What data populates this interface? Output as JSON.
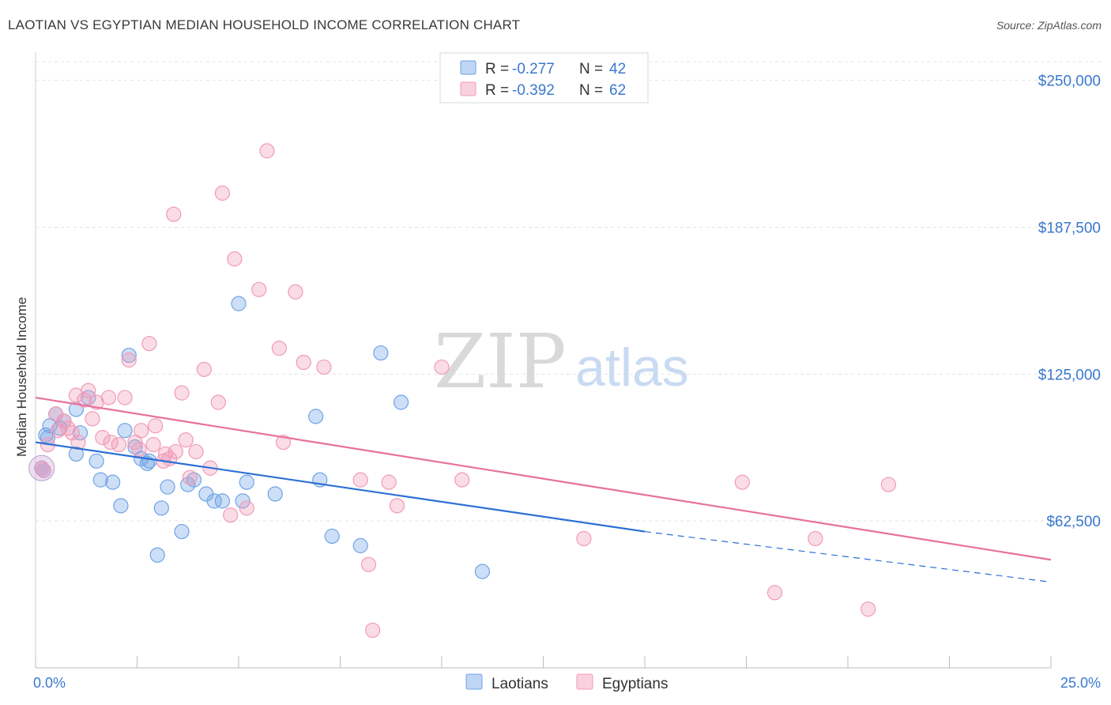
{
  "title": "LAOTIAN VS EGYPTIAN MEDIAN HOUSEHOLD INCOME CORRELATION CHART",
  "source": "Source: ZipAtlas.com",
  "watermark": {
    "zip": "ZIP",
    "atlas": "atlas"
  },
  "legend_stats": [
    {
      "r_label": "R = ",
      "r_value": "-0.277",
      "n_label": "N = ",
      "n_value": "42",
      "color": "#6fa3e6"
    },
    {
      "r_label": "R = ",
      "r_value": "-0.392",
      "n_label": "N = ",
      "n_value": "62",
      "color": "#f29ab6"
    }
  ],
  "chart_data": {
    "type": "scatter",
    "title": "LAOTIAN VS EGYPTIAN MEDIAN HOUSEHOLD INCOME CORRELATION CHART",
    "xlabel": "",
    "ylabel": "Median Household Income",
    "xlim": [
      0,
      25
    ],
    "ylim": [
      0,
      262000
    ],
    "x_tick_labels": [
      "0.0%",
      "25.0%"
    ],
    "y_ticks": [
      62500,
      125000,
      187500,
      250000
    ],
    "y_tick_labels": [
      "$62,500",
      "$125,000",
      "$187,500",
      "$250,000"
    ],
    "grid": true,
    "legend_position": "bottom",
    "series": [
      {
        "name": "Laotians",
        "color": "#6fa3e6",
        "trend_color": "#2b6fd6",
        "trend": {
          "x0": 0,
          "y0": 96000,
          "x1": 15,
          "y1": 58000,
          "dashed_to_x": 25,
          "dashed_to_y": 36500
        },
        "points": [
          [
            0.2,
            84000
          ],
          [
            0.3,
            98000
          ],
          [
            0.35,
            103000
          ],
          [
            0.5,
            108000
          ],
          [
            0.6,
            102000
          ],
          [
            0.7,
            105000
          ],
          [
            1.0,
            110000
          ],
          [
            1.1,
            100000
          ],
          [
            1.3,
            115000
          ],
          [
            1.0,
            91000
          ],
          [
            1.5,
            88000
          ],
          [
            1.6,
            80000
          ],
          [
            1.9,
            79000
          ],
          [
            2.1,
            69000
          ],
          [
            2.2,
            101000
          ],
          [
            2.3,
            133000
          ],
          [
            2.45,
            94000
          ],
          [
            2.6,
            89000
          ],
          [
            2.75,
            87000
          ],
          [
            2.8,
            88000
          ],
          [
            3.1,
            68000
          ],
          [
            3.25,
            77000
          ],
          [
            3.0,
            48000
          ],
          [
            3.6,
            58000
          ],
          [
            3.75,
            78000
          ],
          [
            3.9,
            80000
          ],
          [
            4.2,
            74000
          ],
          [
            4.4,
            71000
          ],
          [
            4.6,
            71000
          ],
          [
            5.1,
            71000
          ],
          [
            5.2,
            79000
          ],
          [
            5.9,
            74000
          ],
          [
            5.0,
            155000
          ],
          [
            6.9,
            107000
          ],
          [
            7.0,
            80000
          ],
          [
            7.3,
            56000
          ],
          [
            8.0,
            52000
          ],
          [
            8.5,
            134000
          ],
          [
            9.0,
            113000
          ],
          [
            11.0,
            41000
          ],
          [
            0.15,
            85000
          ],
          [
            0.25,
            99000
          ]
        ]
      },
      {
        "name": "Egyptians",
        "color": "#f29ab6",
        "trend_color": "#e8719a",
        "trend": {
          "x0": 0,
          "y0": 115000,
          "x1": 25,
          "y1": 46000
        },
        "points": [
          [
            0.2,
            84000
          ],
          [
            0.3,
            95000
          ],
          [
            0.5,
            108000
          ],
          [
            0.55,
            101000
          ],
          [
            0.7,
            105000
          ],
          [
            0.8,
            102000
          ],
          [
            0.9,
            100000
          ],
          [
            1.0,
            116000
          ],
          [
            1.05,
            96000
          ],
          [
            1.2,
            114000
          ],
          [
            1.3,
            118000
          ],
          [
            1.4,
            106000
          ],
          [
            1.5,
            113000
          ],
          [
            1.65,
            98000
          ],
          [
            1.8,
            115000
          ],
          [
            1.85,
            96000
          ],
          [
            2.05,
            95000
          ],
          [
            2.2,
            115000
          ],
          [
            2.3,
            131000
          ],
          [
            2.45,
            96000
          ],
          [
            2.55,
            93000
          ],
          [
            2.6,
            101000
          ],
          [
            2.8,
            138000
          ],
          [
            2.9,
            95000
          ],
          [
            2.95,
            103000
          ],
          [
            3.15,
            88000
          ],
          [
            3.2,
            91000
          ],
          [
            3.3,
            89000
          ],
          [
            3.45,
            92000
          ],
          [
            3.4,
            193000
          ],
          [
            3.6,
            117000
          ],
          [
            3.7,
            97000
          ],
          [
            3.8,
            81000
          ],
          [
            3.95,
            92000
          ],
          [
            4.15,
            127000
          ],
          [
            4.3,
            85000
          ],
          [
            4.5,
            113000
          ],
          [
            4.6,
            202000
          ],
          [
            4.8,
            65000
          ],
          [
            4.9,
            174000
          ],
          [
            5.2,
            68000
          ],
          [
            5.5,
            161000
          ],
          [
            5.7,
            220000
          ],
          [
            6.0,
            136000
          ],
          [
            6.1,
            96000
          ],
          [
            6.4,
            160000
          ],
          [
            6.6,
            130000
          ],
          [
            7.1,
            128000
          ],
          [
            8.0,
            80000
          ],
          [
            8.2,
            44000
          ],
          [
            8.3,
            16000
          ],
          [
            8.7,
            79000
          ],
          [
            8.9,
            69000
          ],
          [
            10.0,
            128000
          ],
          [
            10.5,
            80000
          ],
          [
            13.5,
            55000
          ],
          [
            17.4,
            79000
          ],
          [
            18.2,
            32000
          ],
          [
            19.2,
            55000
          ],
          [
            20.5,
            25000
          ],
          [
            21.0,
            78000
          ],
          [
            0.15,
            85000
          ]
        ]
      }
    ]
  }
}
